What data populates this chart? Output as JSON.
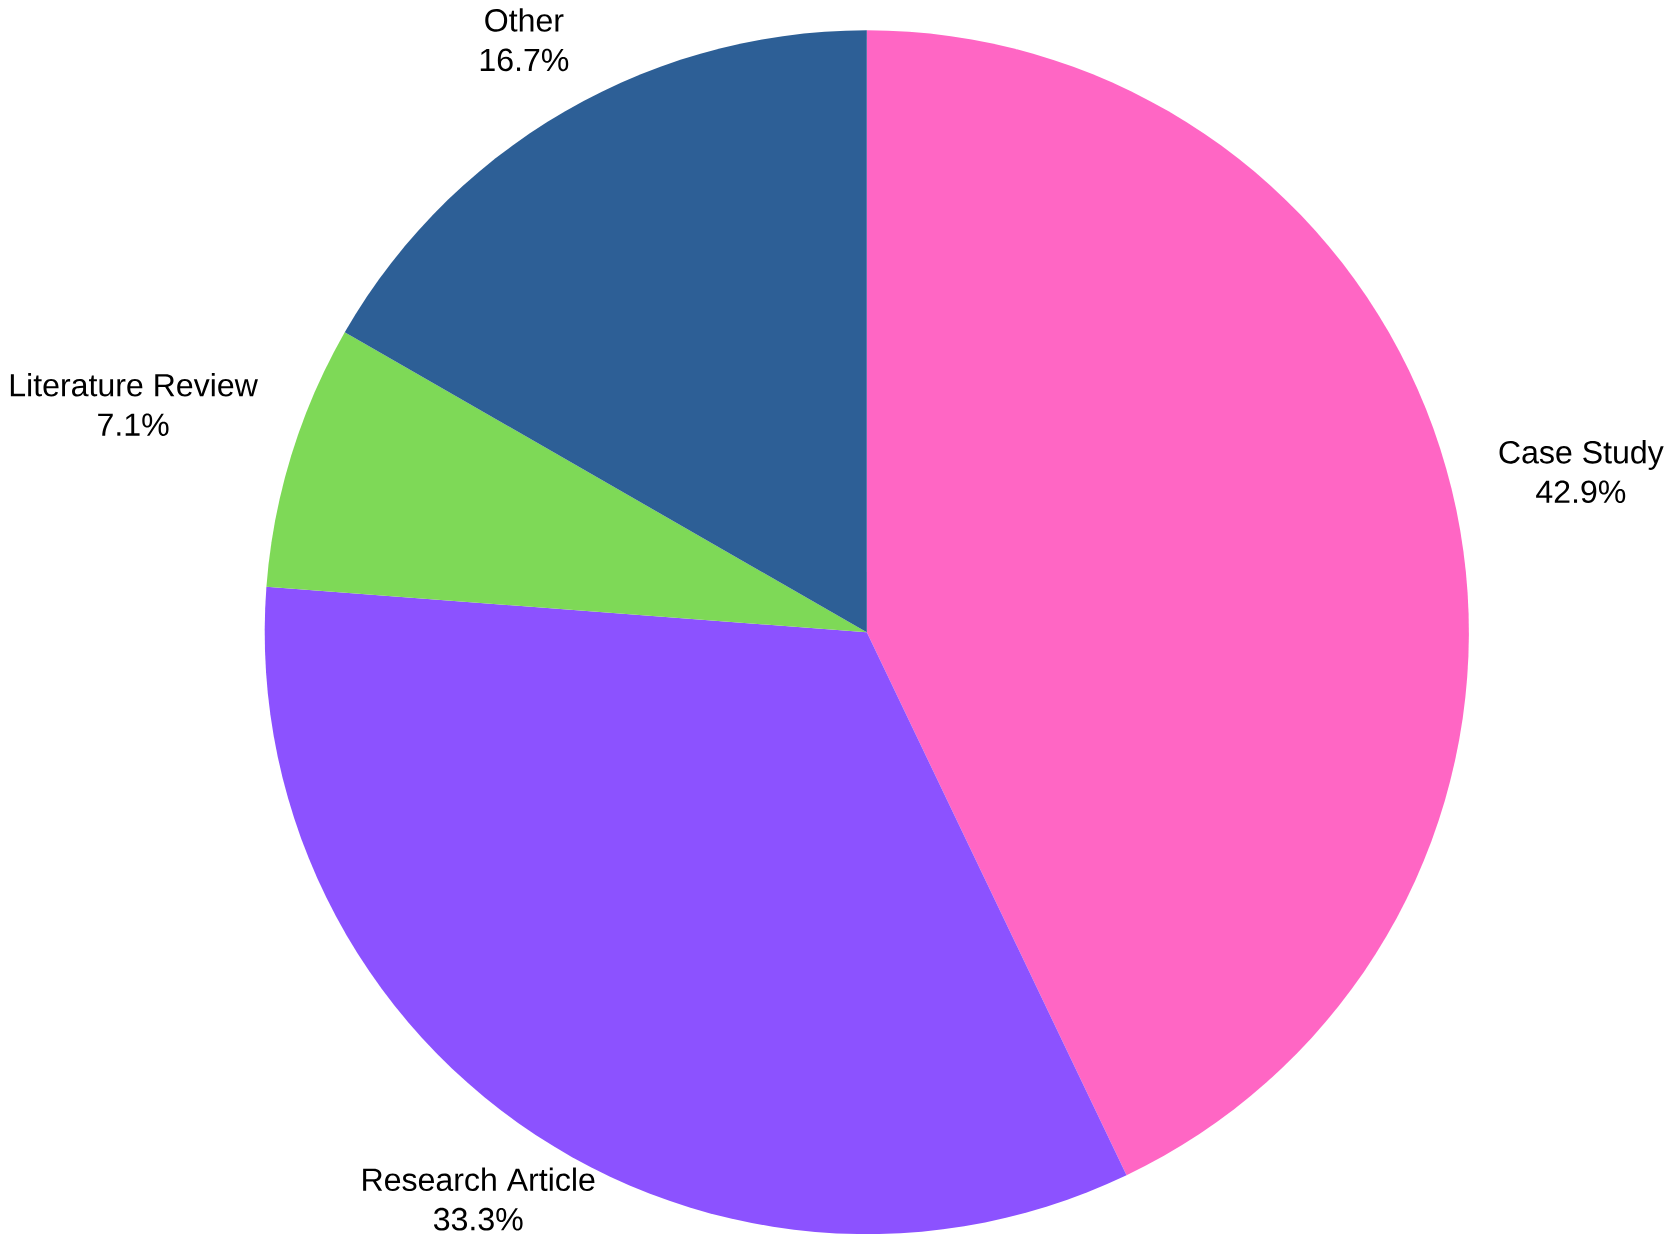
{
  "chart_data": {
    "type": "pie",
    "categories": [
      "Case Study",
      "Research Article",
      "Literature Review",
      "Other"
    ],
    "values": [
      42.9,
      33.3,
      7.1,
      16.7
    ],
    "value_labels": [
      "42.9%",
      "33.3%",
      "7.1%",
      "16.7%"
    ],
    "colors": [
      "#ff66c4",
      "#8c52ff",
      "#7ed957",
      "#2d5f96"
    ]
  }
}
